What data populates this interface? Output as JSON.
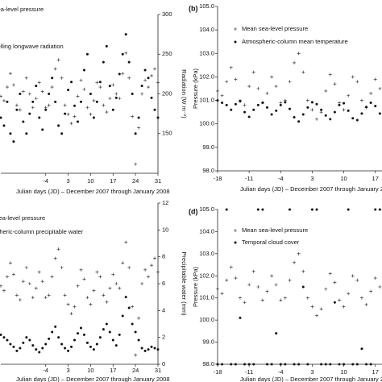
{
  "chart_data": [
    {
      "type": "scatter",
      "xlabel": "Julian days (JD) – December 2007 through January 2008",
      "y2label": "Radiation (W m⁻²)",
      "x": [
        -18,
        -17,
        -16,
        -15,
        -14,
        -13,
        -12,
        -11,
        -10,
        -9,
        -8,
        -7,
        -6,
        -5,
        -4,
        -3,
        -2,
        -1,
        0,
        1,
        2,
        3,
        4,
        5,
        6,
        7,
        8,
        9,
        10,
        11,
        12,
        13,
        14,
        15,
        16,
        17,
        18,
        19,
        20,
        21,
        22,
        23,
        24,
        25,
        26,
        27,
        28,
        29,
        30,
        31
      ],
      "xlim": [
        -18,
        31
      ],
      "xticks": [
        -4,
        3,
        10,
        17,
        24,
        31
      ],
      "ylim": [
        98,
        105
      ],
      "y2lim": [
        100,
        300
      ],
      "y2ticks": [
        150,
        200,
        250,
        300
      ],
      "legend": "upper left",
      "series": [
        {
          "name": "Mean sea-level pressure",
          "color": "#222222",
          "marker": "plus",
          "axis": "y",
          "values": [
            101.4,
            101.2,
            101.8,
            102.4,
            101.9,
            101.0,
            100.8,
            101.6,
            102.2,
            101.5,
            100.9,
            101.3,
            102.0,
            101.6,
            100.9,
            101.0,
            101.8,
            102.6,
            103.0,
            102.2,
            101.0,
            100.6,
            100.2,
            100.5,
            101.4,
            102.1,
            101.7,
            100.9,
            100.6,
            101.2,
            102.0,
            101.8,
            101.0,
            100.7,
            101.3,
            101.9,
            101.5,
            101.3,
            102.4,
            103.3,
            102.2,
            100.5,
            98.4,
            100.0,
            101.5,
            102.1,
            101.8,
            102.3,
            102.6,
            102.0
          ]
        },
        {
          "name": "Downwelling longwave radiation",
          "color": "#111111",
          "marker": "dot",
          "axis": "y2",
          "values": [
            170,
            160,
            190,
            150,
            140,
            180,
            200,
            165,
            150,
            175,
            190,
            210,
            170,
            155,
            180,
            200,
            220,
            190,
            160,
            150,
            175,
            205,
            215,
            185,
            165,
            190,
            230,
            250,
            200,
            170,
            190,
            215,
            240,
            260,
            210,
            180,
            195,
            225,
            250,
            275,
            240,
            200,
            150,
            170,
            210,
            230,
            220,
            195,
            180,
            170
          ]
        }
      ]
    },
    {
      "type": "scatter",
      "label": "(b)",
      "xlabel": "Julian days (JD) – December 2007 through January 2008",
      "ylabel": "Pressure (kPa)",
      "x": [
        -18,
        -17,
        -16,
        -15,
        -14,
        -13,
        -12,
        -11,
        -10,
        -9,
        -8,
        -7,
        -6,
        -5,
        -4,
        -3,
        -2,
        -1,
        0,
        1,
        2,
        3,
        4,
        5,
        6,
        7,
        8,
        9,
        10,
        11,
        12,
        13,
        14,
        15,
        16,
        17,
        18,
        19,
        20,
        21,
        22,
        23,
        24,
        25,
        26,
        27,
        28,
        29,
        30,
        31
      ],
      "xlim": [
        -18,
        31
      ],
      "xticks": [
        -18,
        -11,
        -4,
        3,
        10,
        17
      ],
      "ylim": [
        98,
        105
      ],
      "yticks": [
        {
          "value": 98,
          "label": "98.0"
        },
        {
          "value": 99,
          "label": "99.0"
        },
        {
          "value": 100,
          "label": "100.0"
        },
        {
          "value": 101,
          "label": "101.0"
        },
        {
          "value": 102,
          "label": "102.0"
        },
        {
          "value": 103,
          "label": "103.0"
        },
        {
          "value": 104,
          "label": "104.0"
        },
        {
          "value": 105,
          "label": "105.0"
        }
      ],
      "y2lim": [
        -30,
        5
      ],
      "legend": "upper left",
      "series": [
        {
          "name": "Mean sea-level pressure",
          "color": "#222222",
          "marker": "plus",
          "axis": "y",
          "values": [
            101.4,
            101.2,
            101.8,
            102.4,
            101.9,
            101.0,
            100.8,
            101.6,
            102.2,
            101.5,
            100.9,
            101.3,
            102.0,
            101.6,
            100.9,
            101.0,
            101.8,
            102.6,
            103.0,
            102.2,
            101.0,
            100.6,
            100.2,
            100.5,
            101.4,
            102.1,
            101.7,
            100.9,
            100.6,
            101.2,
            102.0,
            101.8,
            101.0,
            100.7,
            101.3,
            101.9,
            101.5,
            101.3,
            102.4,
            103.3,
            102.2,
            100.5,
            98.4,
            100.0,
            101.5,
            102.1,
            101.8,
            102.3,
            102.6,
            102.0
          ]
        },
        {
          "name": "Atmospheric-column mean temperature",
          "color": "#111111",
          "marker": "dot",
          "axis": "y2",
          "values": [
            -15,
            -15.5,
            -16,
            -17,
            -15.8,
            -15.2,
            -17.5,
            -18.5,
            -17,
            -16,
            -15.5,
            -16.5,
            -18,
            -17.2,
            -16,
            -15.4,
            -16.8,
            -18.6,
            -19.5,
            -18,
            -16.5,
            -15.4,
            -15.8,
            -17,
            -18.2,
            -19,
            -17.5,
            -16,
            -15.6,
            -17.2,
            -18.8,
            -19.2,
            -17.8,
            -16.4,
            -15.5,
            -16.2,
            -17.8,
            -18.9,
            -17.5,
            -16,
            -15.2,
            -15.8,
            -17.4,
            -18.6,
            -17.6,
            -16.3,
            -15.4,
            -16.1,
            -17.3,
            -16.8
          ]
        }
      ]
    },
    {
      "type": "scatter",
      "xlabel": "Julian days (JD) – December 2007 through January 2008",
      "y2label": "Precipitable water (mm)",
      "x": [
        -18,
        -17,
        -16,
        -15,
        -14,
        -13,
        -12,
        -11,
        -10,
        -9,
        -8,
        -7,
        -6,
        -5,
        -4,
        -3,
        -2,
        -1,
        0,
        1,
        2,
        3,
        4,
        5,
        6,
        7,
        8,
        9,
        10,
        11,
        12,
        13,
        14,
        15,
        16,
        17,
        18,
        19,
        20,
        21,
        22,
        23,
        24,
        25,
        26,
        27,
        28,
        29,
        30,
        31
      ],
      "xlim": [
        -18,
        31
      ],
      "xticks": [
        -4,
        3,
        10,
        17,
        24,
        31
      ],
      "ylim": [
        98,
        105
      ],
      "y2lim": [
        0,
        12
      ],
      "y2ticks": [
        0,
        2,
        4,
        6,
        8,
        10,
        12
      ],
      "legend": "upper left",
      "series": [
        {
          "name": "Mean sea-level pressure",
          "color": "#222222",
          "marker": "plus",
          "axis": "y",
          "values": [
            101.4,
            101.2,
            101.8,
            102.4,
            101.9,
            101.0,
            100.8,
            101.6,
            102.2,
            101.5,
            100.9,
            101.3,
            102.0,
            101.6,
            100.9,
            101.0,
            101.8,
            102.6,
            103.0,
            102.2,
            101.0,
            100.6,
            100.2,
            100.5,
            101.4,
            102.1,
            101.7,
            100.9,
            100.6,
            101.2,
            102.0,
            101.8,
            101.0,
            100.7,
            101.3,
            101.9,
            101.5,
            101.3,
            102.4,
            103.3,
            102.2,
            100.5,
            98.4,
            100.0,
            101.5,
            102.1,
            101.8,
            102.3,
            102.6,
            102.0
          ]
        },
        {
          "name": "Atmospheric-column precipitable water",
          "color": "#111111",
          "marker": "dot",
          "axis": "y2",
          "values": [
            2.2,
            2.0,
            1.8,
            1.5,
            1.3,
            1.0,
            1.2,
            1.6,
            2.0,
            1.8,
            1.4,
            1.1,
            0.9,
            1.2,
            1.5,
            1.9,
            2.4,
            2.8,
            2.0,
            1.5,
            1.2,
            1.0,
            1.3,
            1.8,
            2.3,
            2.7,
            2.2,
            1.6,
            1.3,
            1.1,
            1.5,
            2.0,
            2.6,
            3.0,
            2.4,
            1.8,
            1.4,
            2.2,
            3.6,
            5.0,
            4.2,
            3.0,
            2.4,
            1.8,
            1.2,
            1.0,
            1.1,
            1.3,
            1.2,
            1.1
          ]
        }
      ]
    },
    {
      "type": "scatter",
      "label": "(d)",
      "xlabel": "Julian days (JD) – December 2007 through January 2008",
      "ylabel": "Pressure (kPa)",
      "x": [
        -18,
        -17,
        -16,
        -15,
        -14,
        -13,
        -12,
        -11,
        -10,
        -9,
        -8,
        -7,
        -6,
        -5,
        -4,
        -3,
        -2,
        -1,
        0,
        1,
        2,
        3,
        4,
        5,
        6,
        7,
        8,
        9,
        10,
        11,
        12,
        13,
        14,
        15,
        16,
        17,
        18,
        19,
        20,
        21,
        22,
        23,
        24,
        25,
        26,
        27,
        28,
        29,
        30,
        31
      ],
      "xlim": [
        -18,
        31
      ],
      "xticks": [
        -18,
        -11,
        -4,
        3,
        10,
        17
      ],
      "ylim": [
        98,
        105
      ],
      "yticks": [
        {
          "value": 98,
          "label": "98.0"
        },
        {
          "value": 99,
          "label": "99.0"
        },
        {
          "value": 100,
          "label": "100.0"
        },
        {
          "value": 101,
          "label": "101.0"
        },
        {
          "value": 102,
          "label": "102.0"
        },
        {
          "value": 103,
          "label": "103.0"
        },
        {
          "value": 104,
          "label": "104.0"
        },
        {
          "value": 105,
          "label": "105.0"
        }
      ],
      "y2lim": [
        0,
        10
      ],
      "legend": "upper left",
      "series": [
        {
          "name": "Mean sea-level pressure",
          "color": "#222222",
          "marker": "plus",
          "axis": "y",
          "values": [
            101.4,
            101.2,
            101.8,
            102.4,
            101.9,
            101.0,
            100.8,
            101.6,
            102.2,
            101.5,
            100.9,
            101.3,
            102.0,
            101.6,
            100.9,
            101.0,
            101.8,
            102.6,
            103.0,
            102.2,
            101.0,
            100.6,
            100.2,
            100.5,
            101.4,
            102.1,
            101.7,
            100.9,
            100.6,
            101.2,
            102.0,
            101.8,
            101.0,
            100.7,
            101.3,
            101.9,
            101.5,
            101.3,
            102.4,
            103.3,
            102.2,
            100.5,
            98.4,
            100.0,
            101.5,
            102.1,
            101.8,
            102.3,
            102.6,
            102.0
          ]
        },
        {
          "name": "Temporal cloud cover",
          "color": "#111111",
          "marker": "dot",
          "axis": "y2",
          "values": [
            0,
            0,
            10,
            0,
            0,
            3,
            0,
            0,
            0,
            10,
            10,
            0,
            0,
            2,
            0,
            0,
            10,
            0,
            0,
            5,
            0,
            10,
            10,
            0,
            0,
            0,
            4,
            0,
            0,
            10,
            0,
            0,
            1,
            0,
            0,
            10,
            10,
            0,
            0,
            6,
            0,
            0,
            10,
            10,
            0,
            0,
            3,
            0,
            0,
            10
          ]
        }
      ]
    }
  ]
}
